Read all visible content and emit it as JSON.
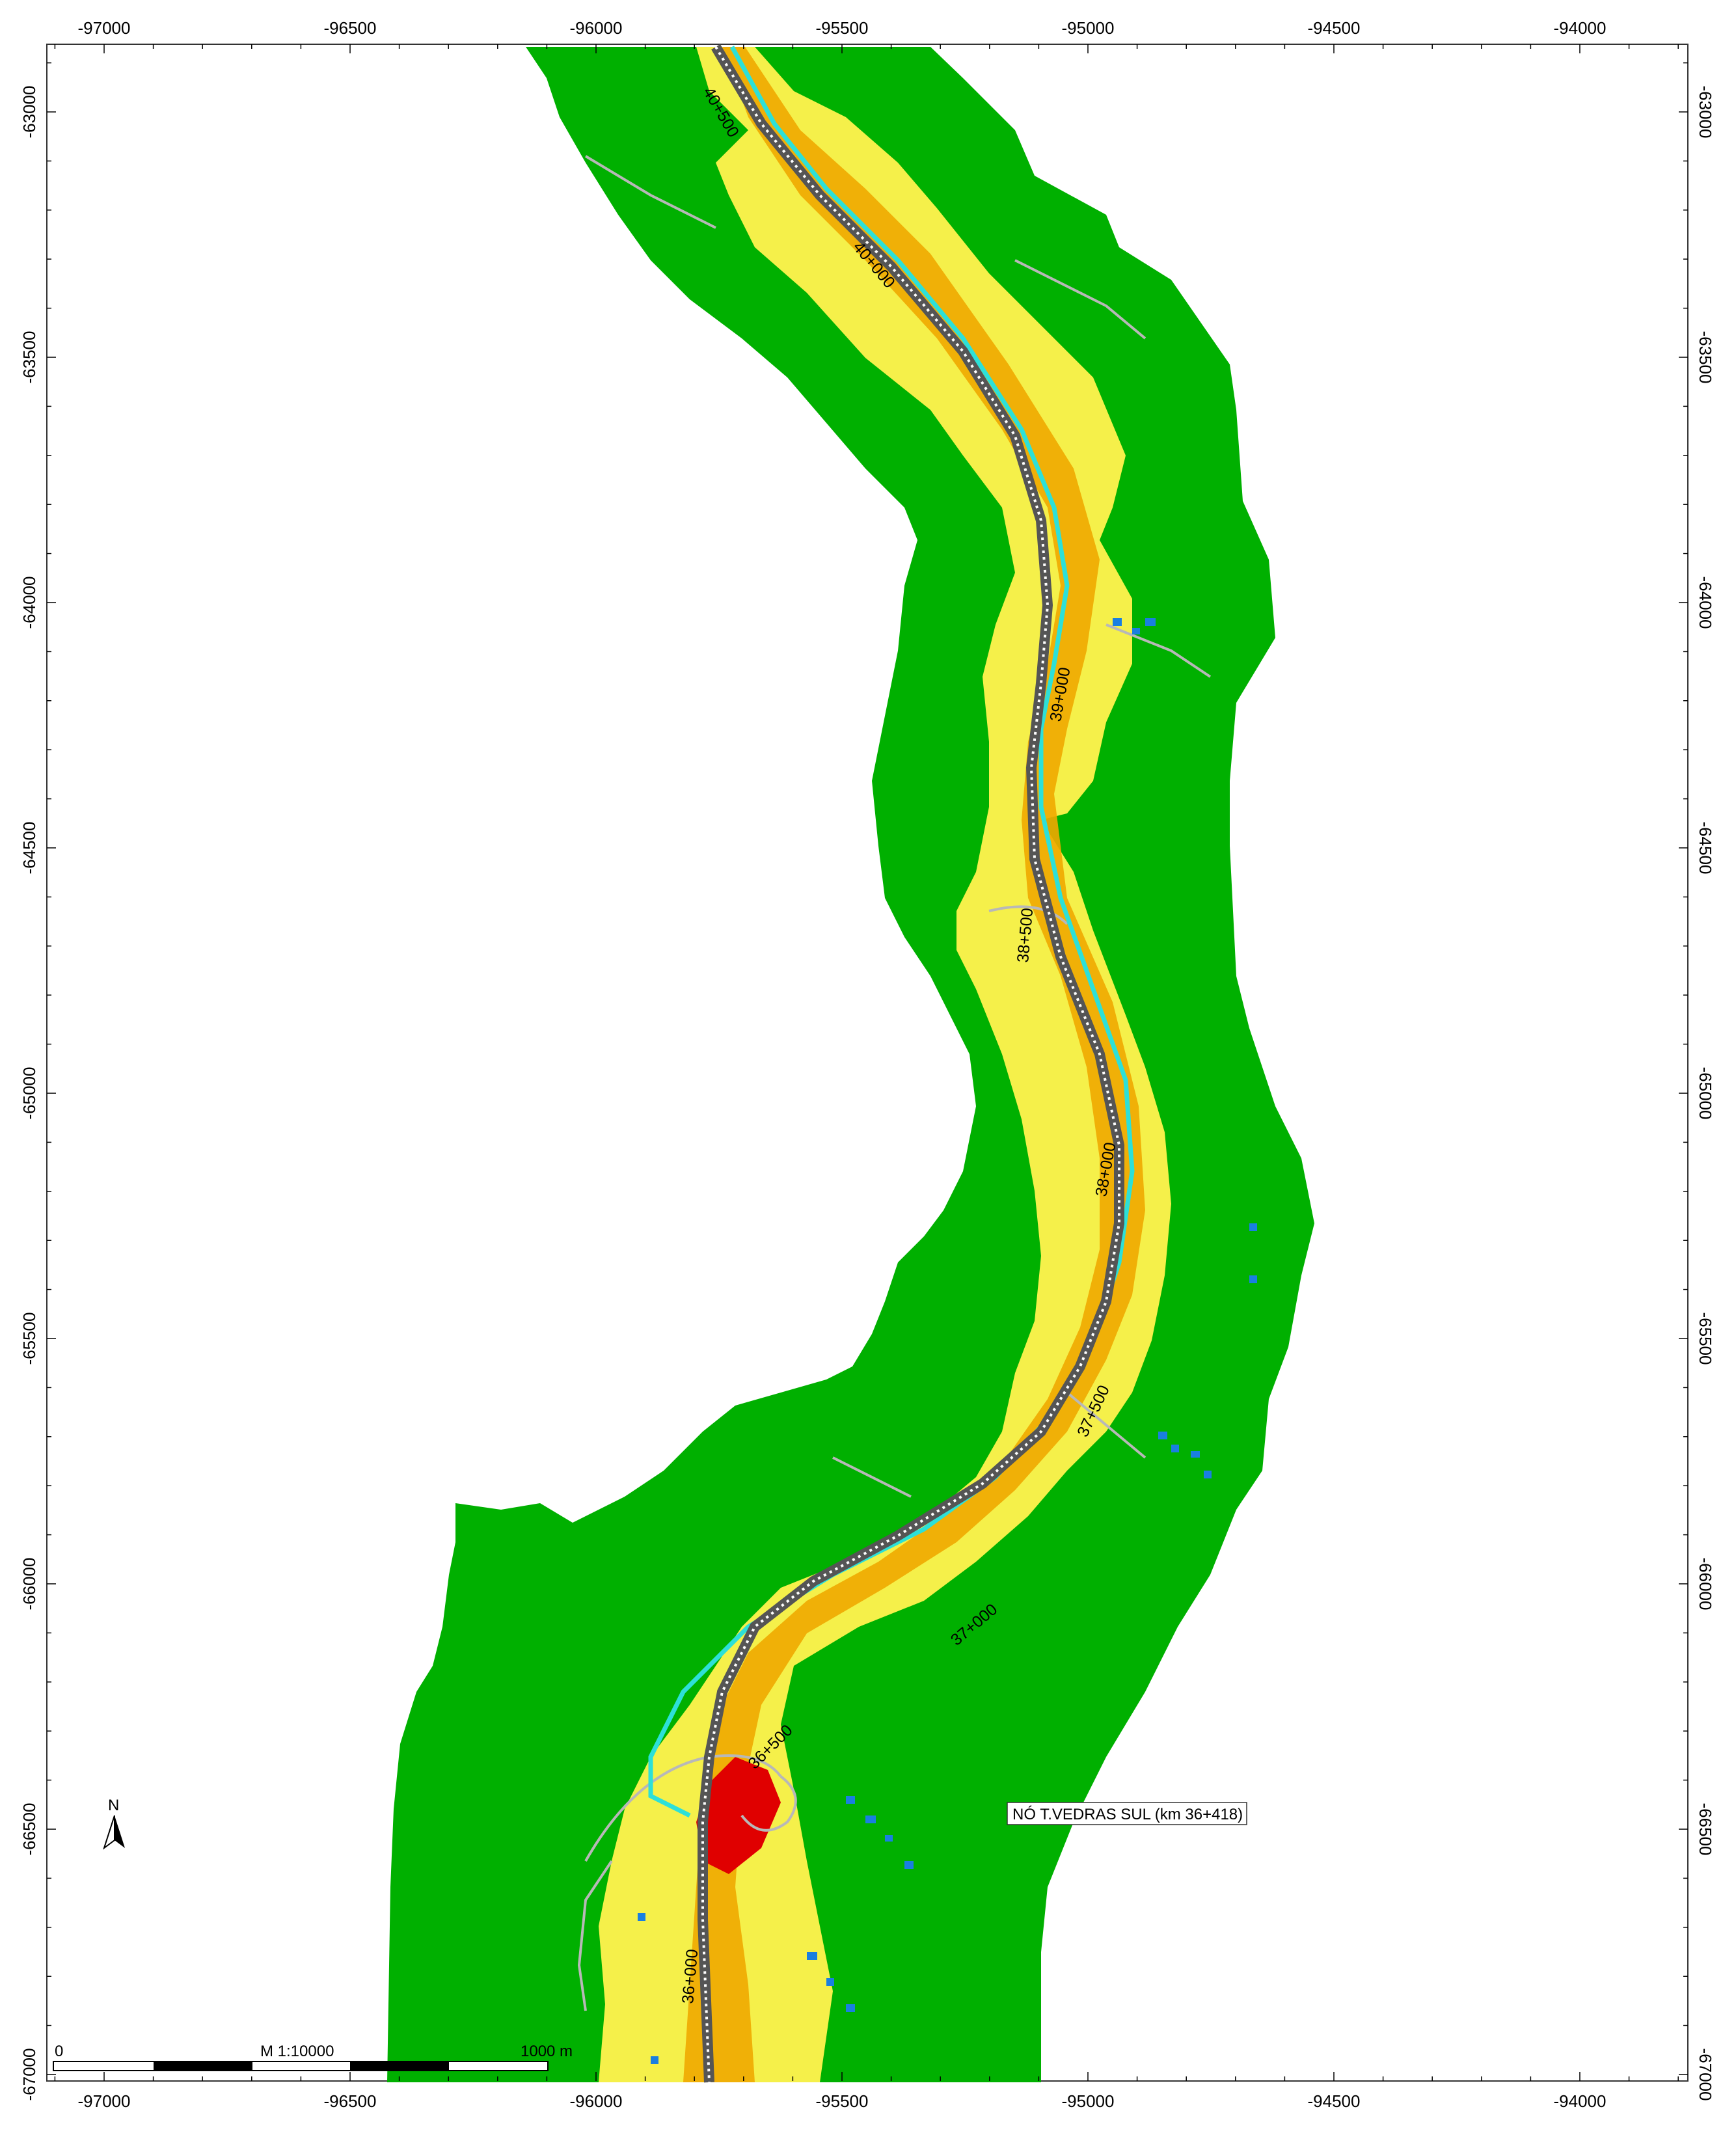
{
  "map": {
    "x_ticks": [
      "-97000",
      "-96500",
      "-96000",
      "-95500",
      "-95000",
      "-94500",
      "-94000"
    ],
    "y_ticks": [
      "-63000",
      "-63500",
      "-64000",
      "-64500",
      "-65000",
      "-65500",
      "-66000",
      "-66500",
      "-67000"
    ],
    "km_labels": [
      "40+500",
      "40+000",
      "39+000",
      "38+500",
      "38+000",
      "37+500",
      "37+000",
      "36+500",
      "36+000"
    ],
    "callout": "NÓ T.VEDRAS SUL (km 36+418)",
    "north_arrow": "N",
    "scale": {
      "start": "0",
      "ratio": "M 1:10000",
      "end": "1000 m"
    },
    "colors": {
      "outer_zone": "#00b000",
      "medium_zone": "#f5f04a",
      "inner_zone": "#f0a800",
      "high_zone": "#e00000",
      "watercourse": "#2de0d8",
      "railway": "#555555",
      "buildings": "#1a7fe0",
      "roads": "#b8b8b8"
    }
  }
}
